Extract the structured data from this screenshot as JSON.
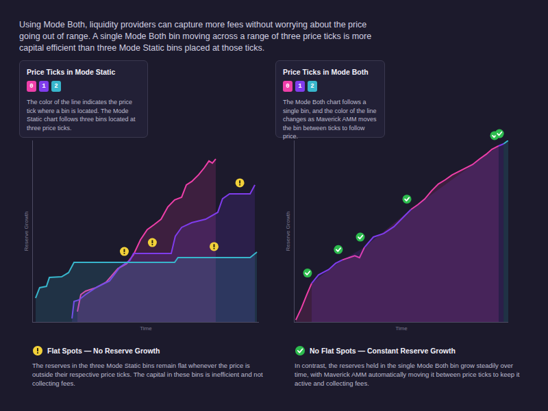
{
  "intro": "Using Mode Both, liquidity providers can capture more fees without worrying about the price going out of range. A single Mode Both bin moving across a range of three price ticks is more capital efficient than three Mode Static bins placed at those ticks.",
  "chart_data": [
    {
      "type": "line",
      "title": "Price Ticks in Mode Static",
      "subtitle": "The color of the line indicates the price tick where a bin is located. The Mode Static chart follows three bins located at three price ticks.",
      "x_label": "Time",
      "y_label": "Reserve Growth",
      "xlim": [
        0,
        100
      ],
      "ylim": [
        0,
        100
      ],
      "xticks": [],
      "yticks": [],
      "tick_labels": false,
      "grid": false,
      "series": [
        {
          "name": "0",
          "color": "#ee3fa9",
          "x": [
            19.7,
            21.2,
            23.3,
            27.9,
            32.4,
            35.5,
            37.6,
            41.5,
            44.5,
            47.6,
            50.6,
            53.6,
            56.7,
            59.7,
            62.7,
            65.8,
            67.9,
            70.3,
            73.3,
            75.8,
            77.9,
            79.4,
            80.9
          ],
          "values": [
            5.7,
            15.1,
            17.0,
            18.9,
            21.9,
            26.4,
            29.4,
            32.1,
            37.0,
            45.3,
            50.9,
            53.6,
            56.6,
            63.4,
            67.2,
            68.7,
            75.5,
            77.4,
            81.1,
            84.9,
            88.7,
            87.5,
            89.8
          ]
        },
        {
          "name": "1",
          "color": "#7f3cec",
          "x": [
            17.3,
            18.2,
            20.3,
            23.3,
            27.9,
            33.9,
            38.5,
            43.0,
            44.5,
            61.2,
            63.0,
            65.8,
            70.3,
            76.4,
            81.8,
            83.9,
            87.0,
            96.1,
            98.2
          ],
          "values": [
            1.9,
            11.3,
            12.1,
            15.1,
            18.9,
            22.6,
            30.2,
            34.0,
            37.7,
            37.7,
            47.2,
            52.1,
            54.7,
            56.6,
            60.4,
            67.9,
            70.6,
            70.6,
            75.5
          ]
        },
        {
          "name": "2",
          "color": "#38b6cc",
          "x": [
            1.2,
            3.0,
            6.0,
            7.3,
            12.7,
            15.8,
            18.2,
            62.7,
            64.2,
            96.1,
            99.1
          ],
          "values": [
            13.2,
            18.9,
            19.6,
            24.5,
            24.9,
            27.2,
            32.8,
            32.8,
            35.5,
            35.5,
            38.5
          ]
        }
      ]
    },
    {
      "type": "line",
      "title": "Price Ticks in Mode Both",
      "subtitle": "The Mode Both chart follows a single bin, and the color of the line changes as Maverick AMM moves the bin between ticks to follow price.",
      "x_label": "Time",
      "y_label": "Reserve Growth",
      "xlim": [
        0,
        100
      ],
      "ylim": [
        0,
        100
      ],
      "xticks": [],
      "yticks": [],
      "tick_labels": false,
      "grid": false,
      "x": [
        0.6,
        3.2,
        5.8,
        8.0,
        11.2,
        16.0,
        19.2,
        22.4,
        25.6,
        28.2,
        30.4,
        32.7,
        36.9,
        41.7,
        46.5,
        51.3,
        54.5,
        57.7,
        60.9,
        64.1,
        67.3,
        70.5,
        73.7,
        76.9,
        80.1,
        83.3,
        86.5,
        89.7,
        92.3,
        95.5,
        97.8,
        100
      ],
      "series": [
        {
          "name": "0",
          "color": "#ee3fa9",
          "values": [
            1.1,
            7.6,
            15.2,
            21.3,
            null,
            null,
            null,
            34.2,
            35.4,
            36.5,
            35.4,
            41.1,
            null,
            null,
            null,
            null,
            62.0,
            64.6,
            67.7,
            72.2,
            76.0,
            78.3,
            81.0,
            82.9,
            84.8,
            86.7,
            89.7,
            92.4,
            95.1,
            97.0,
            null,
            null
          ]
        },
        {
          "name": "1",
          "color": "#7f3cec",
          "values": [
            null,
            null,
            null,
            21.3,
            25.9,
            28.9,
            32.3,
            34.2,
            null,
            null,
            null,
            41.1,
            46.8,
            48.7,
            52.5,
            58.2,
            62.0,
            null,
            null,
            null,
            null,
            null,
            null,
            null,
            null,
            null,
            null,
            null,
            null,
            97.0,
            98.1,
            null
          ]
        },
        {
          "name": "2",
          "color": "#38b6cc",
          "values": [
            null,
            null,
            null,
            null,
            null,
            null,
            null,
            null,
            null,
            null,
            null,
            null,
            null,
            null,
            null,
            null,
            null,
            null,
            null,
            null,
            null,
            null,
            null,
            null,
            null,
            null,
            null,
            null,
            null,
            null,
            98.1,
            100
          ]
        }
      ]
    }
  ],
  "callouts": [
    {
      "heading": "Flat Spots — No Reserve Growth",
      "text": "The reserves in the three Mode Static bins remain flat whenever the price is outside their respective price ticks. The capital in these bins is inefficient and not collecting fees."
    },
    {
      "heading": "No Flat Spots — Constant Reserve Growth",
      "text": "In contrast, the reserves held in the single Mode Both bin grow steadily over time, with Maverick AMM automatically moving it between price ticks to keep it active and collecting fees."
    }
  ]
}
